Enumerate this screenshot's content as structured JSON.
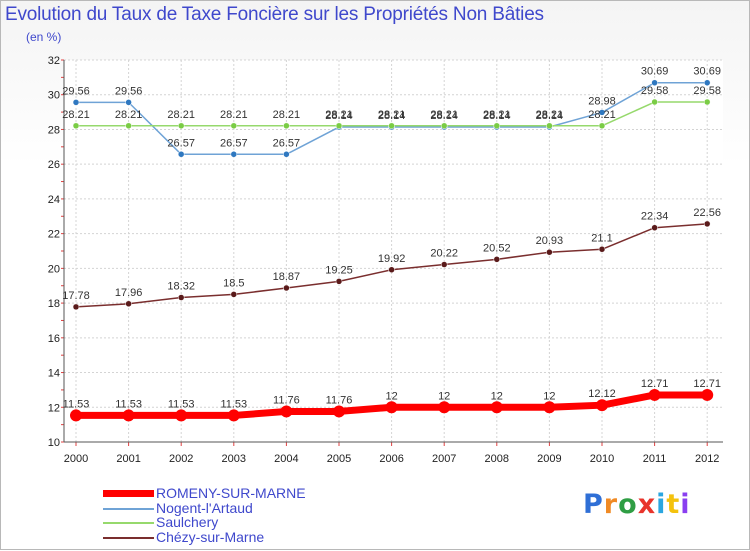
{
  "title": "Evolution du Taux de Taxe Foncière sur les Propriétés Non Bâties",
  "unit": "(en %)",
  "brand": {
    "text": "Proxiti",
    "colors": [
      "#2f6fd6",
      "#f08a24",
      "#2f9e44",
      "#e8342b",
      "#2aa6e0",
      "#f4c20d",
      "#8a3ff0"
    ]
  },
  "chart_data": {
    "type": "line",
    "title": "Evolution du Taux de Taxe Foncière sur les Propriétés Non Bâties",
    "ylabel": "(en %)",
    "xlabel": "",
    "ylim": [
      10,
      32
    ],
    "yticks": [
      "10",
      "12",
      "14",
      "16",
      "18",
      "20",
      "22",
      "24",
      "26",
      "28",
      "30",
      "32"
    ],
    "grid": true,
    "categories": [
      "2000",
      "2001",
      "2002",
      "2003",
      "2004",
      "2005",
      "2006",
      "2007",
      "2008",
      "2009",
      "2010",
      "2011",
      "2012"
    ],
    "series": [
      {
        "name": "ROMENY-SUR-MARNE",
        "color": "#ff0000",
        "marker": "#ff0000",
        "highlight": true,
        "values": [
          11.53,
          11.53,
          11.53,
          11.53,
          11.76,
          11.76,
          12,
          12,
          12,
          12,
          12.12,
          12.71,
          12.71
        ],
        "labels": [
          "11.53",
          "11.53",
          "11.53",
          "11.53",
          "11.76",
          "11.76",
          "12",
          "12",
          "12",
          "12",
          "12.12",
          "12.71",
          "12.71"
        ]
      },
      {
        "name": "Nogent-l'Artaud",
        "color": "#6fa3d6",
        "marker": "#2f78c0",
        "highlight": false,
        "values": [
          29.56,
          29.56,
          26.57,
          26.57,
          26.57,
          28.14,
          28.14,
          28.14,
          28.14,
          28.14,
          28.98,
          30.69,
          30.69
        ],
        "labels": [
          "29.56",
          "29.56",
          "26.57",
          "26.57",
          "26.57",
          "28.14",
          "28.14",
          "28.14",
          "28.14",
          "28.14",
          "28.98",
          "30.69",
          "30.69"
        ]
      },
      {
        "name": "Saulchery",
        "color": "#96d96c",
        "marker": "#7acc45",
        "highlight": false,
        "values": [
          28.21,
          28.21,
          28.21,
          28.21,
          28.21,
          28.21,
          28.21,
          28.21,
          28.21,
          28.21,
          28.21,
          29.58,
          29.58
        ],
        "labels": [
          "28.21",
          "28.21",
          "28.21",
          "28.21",
          "28.21",
          "28.21",
          "28.21",
          "28.21",
          "28.21",
          "28.21",
          "28.21",
          "29.58",
          "29.58"
        ]
      },
      {
        "name": "Chézy-sur-Marne",
        "color": "#7a2e2e",
        "marker": "#5a1a1a",
        "highlight": false,
        "values": [
          17.78,
          17.96,
          18.32,
          18.5,
          18.87,
          19.25,
          19.92,
          20.22,
          20.52,
          20.93,
          21.1,
          22.34,
          22.56
        ],
        "labels": [
          "17.78",
          "17.96",
          "18.32",
          "18.5",
          "18.87",
          "19.25",
          "19.92",
          "20.22",
          "20.52",
          "20.93",
          "21.1",
          "22.34",
          "22.56"
        ]
      }
    ]
  }
}
